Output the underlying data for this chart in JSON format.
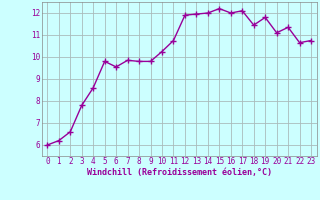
{
  "x": [
    0,
    1,
    2,
    3,
    4,
    5,
    6,
    7,
    8,
    9,
    10,
    11,
    12,
    13,
    14,
    15,
    16,
    17,
    18,
    19,
    20,
    21,
    22,
    23
  ],
  "y": [
    6.0,
    6.2,
    6.6,
    7.8,
    8.6,
    9.8,
    9.55,
    9.85,
    9.8,
    9.8,
    10.25,
    10.75,
    11.9,
    11.95,
    12.0,
    12.2,
    12.0,
    12.1,
    11.45,
    11.8,
    11.1,
    11.35,
    10.65,
    10.75
  ],
  "line_color": "#990099",
  "marker": "+",
  "marker_size": 4,
  "marker_linewidth": 1.0,
  "background_color": "#ccffff",
  "grid_color": "#aabbbb",
  "xlabel": "Windchill (Refroidissement éolien,°C)",
  "xlabel_color": "#990099",
  "tick_color": "#990099",
  "xlim": [
    -0.5,
    23.5
  ],
  "ylim": [
    5.5,
    12.5
  ],
  "yticks": [
    6,
    7,
    8,
    9,
    10,
    11,
    12
  ],
  "xticks": [
    0,
    1,
    2,
    3,
    4,
    5,
    6,
    7,
    8,
    9,
    10,
    11,
    12,
    13,
    14,
    15,
    16,
    17,
    18,
    19,
    20,
    21,
    22,
    23
  ],
  "tick_fontsize": 5.5,
  "xlabel_fontsize": 6.0,
  "line_width": 1.0
}
